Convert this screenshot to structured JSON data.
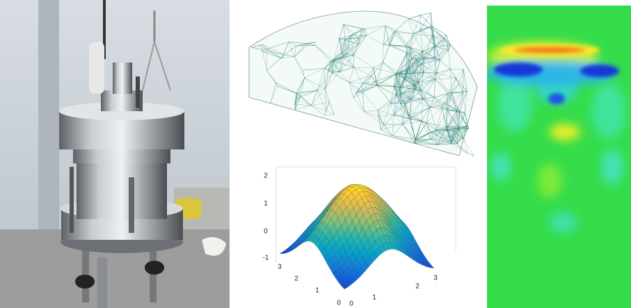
{
  "surface_plot": {
    "z_ticks": [
      "2",
      "1",
      "0",
      "-1"
    ],
    "y_ticks": [
      "3",
      "2",
      "1",
      "0"
    ],
    "x_ticks": [
      "0",
      "1",
      "2",
      "3"
    ]
  }
}
